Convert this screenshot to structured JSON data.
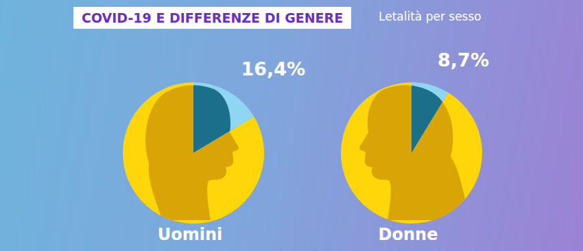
{
  "title": "COVID-19 E DIFFERENZE DI GENERE",
  "subtitle": "Letalità per sesso",
  "chart_data": [
    {
      "type": "pie",
      "title": "Uomini",
      "values": [
        16.4,
        83.6
      ],
      "value_labels": [
        "16,4%",
        null
      ],
      "colors": [
        "#8fd6f2",
        "#ffd60a"
      ]
    },
    {
      "type": "pie",
      "title": "Donne",
      "values": [
        8.7,
        91.3
      ],
      "value_labels": [
        "8,7%",
        null
      ],
      "colors": [
        "#8fd6f2",
        "#ffd60a"
      ]
    }
  ]
}
